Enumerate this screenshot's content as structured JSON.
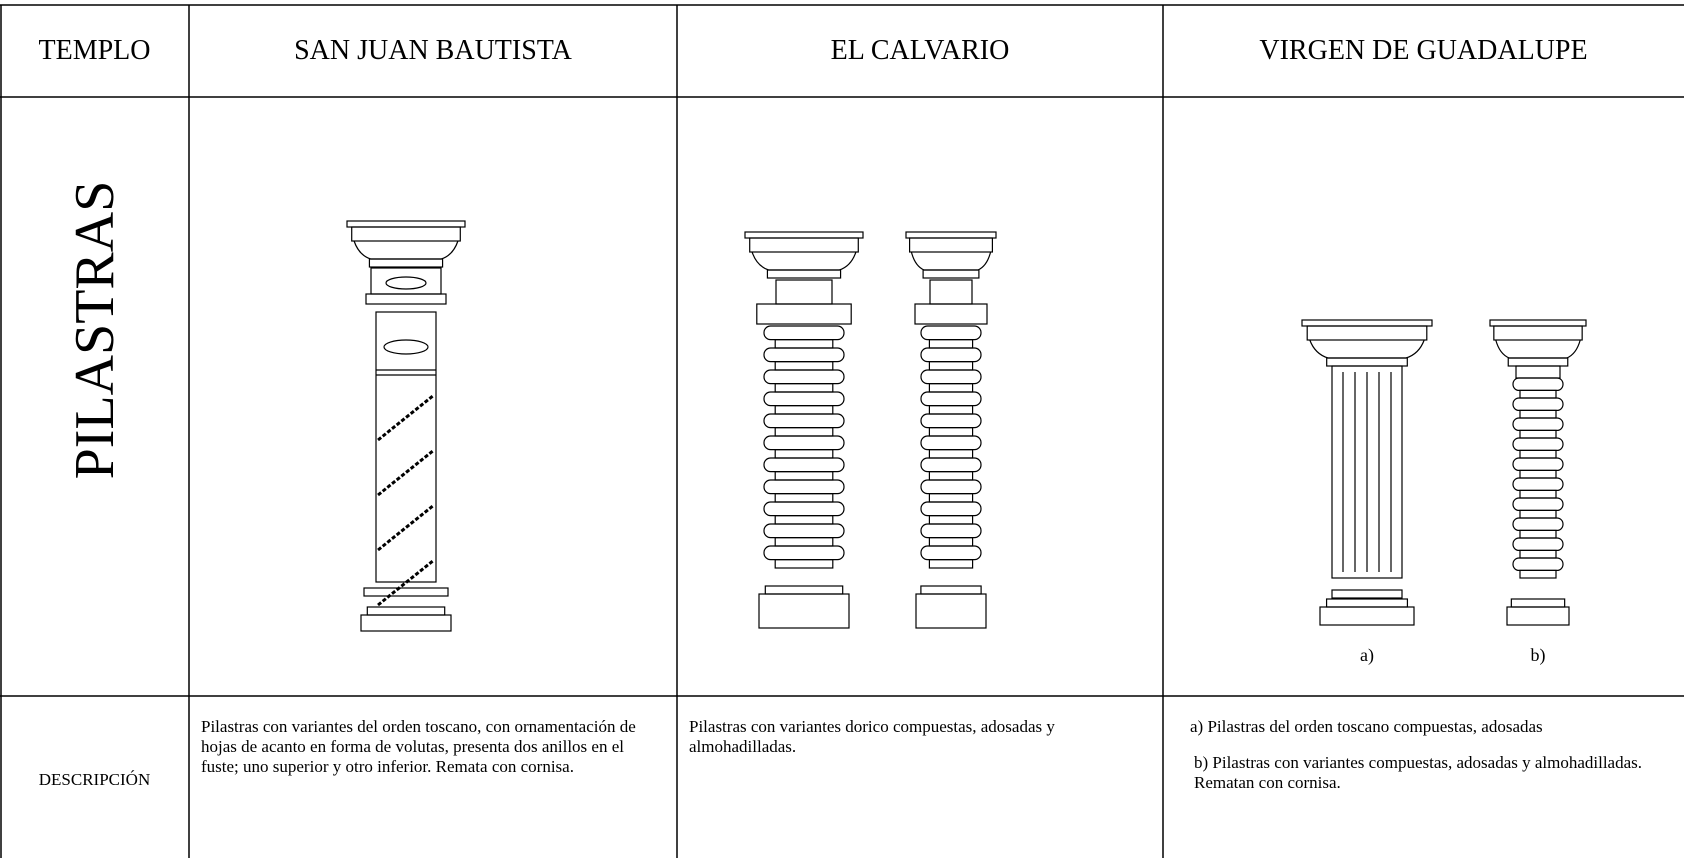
{
  "header": {
    "row_label": "TEMPLO",
    "columns": [
      "SAN JUAN BAUTISTA",
      "EL CALVARIO",
      "VIRGEN DE GUADALUPE"
    ]
  },
  "pilastras_row": {
    "label": "PILASTRAS",
    "figure_labels": [
      "a)",
      "b)"
    ]
  },
  "descripcion_row": {
    "label": "DESCRIPCIÓN",
    "cells": [
      [
        "Pilastras con variantes del orden toscano, con ornamentación de hojas de acanto en forma de volutas, presenta dos anillos en el fuste; uno superior y otro inferior. Remata con cornisa."
      ],
      [
        "Pilastras con variantes  dorico compuestas, adosadas y almohadilladas."
      ],
      [
        "a) Pilastras del orden toscano compuestas, adosadas",
        "b) Pilastras con variantes  compuestas, adosadas y almohadilladas. Rematan con cornisa."
      ]
    ]
  }
}
